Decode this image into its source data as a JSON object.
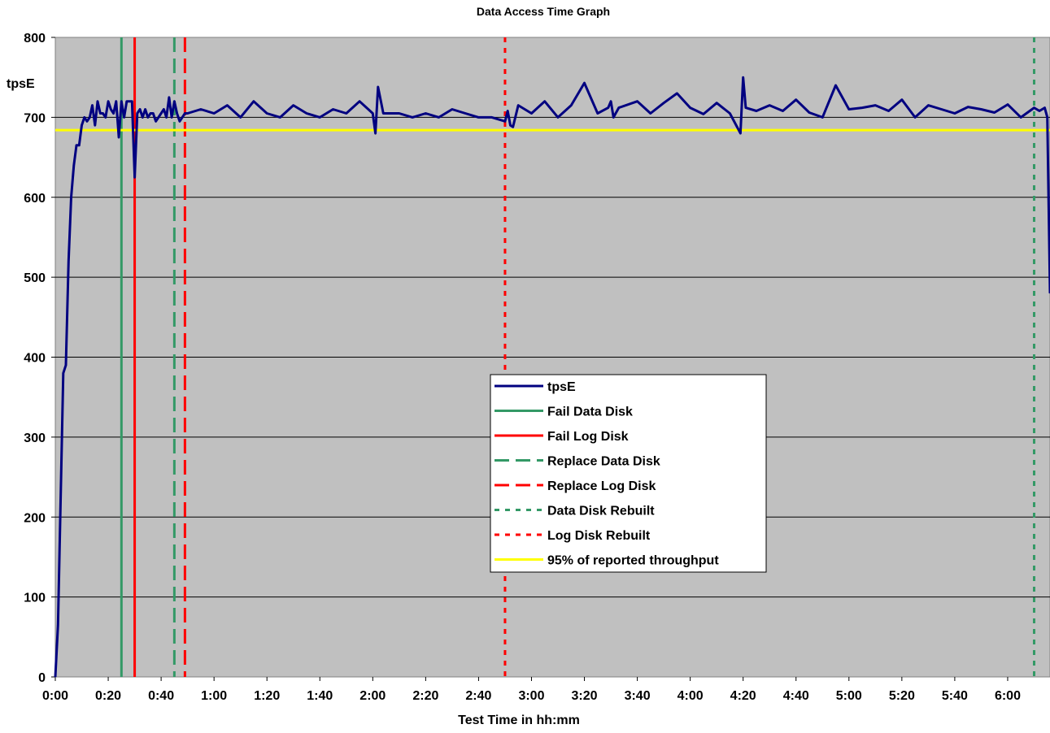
{
  "chart_data": {
    "type": "line",
    "title": "Data Access Time Graph",
    "xlabel": "Test Time in hh:mm",
    "ylabel": "tpsE",
    "ylim": [
      0,
      800
    ],
    "yticks": [
      0,
      100,
      200,
      300,
      400,
      500,
      600,
      700,
      800
    ],
    "xlim_minutes": [
      0,
      376
    ],
    "xticks": [
      "0:00",
      "0:20",
      "0:40",
      "1:00",
      "1:20",
      "1:40",
      "2:00",
      "2:20",
      "2:40",
      "3:00",
      "3:20",
      "3:40",
      "4:00",
      "4:20",
      "4:40",
      "5:00",
      "5:20",
      "5:40",
      "6:00"
    ],
    "grid": "horizontal",
    "legend_position": "center",
    "series": [
      {
        "name": "tpsE",
        "color": "#000080",
        "style": "solid",
        "x_minutes": [
          0,
          1,
          2,
          3,
          4,
          5,
          6,
          7,
          8,
          9,
          10,
          11,
          12,
          13,
          14,
          15,
          16,
          17,
          18,
          19,
          20,
          21,
          22,
          23,
          24,
          25,
          26,
          27,
          28,
          29,
          30,
          31,
          32,
          33,
          34,
          35,
          36,
          37,
          38,
          39,
          40,
          41,
          42,
          43,
          44,
          45,
          46,
          47,
          48,
          49,
          50,
          55,
          60,
          65,
          70,
          75,
          80,
          85,
          90,
          95,
          100,
          105,
          110,
          115,
          120,
          121,
          122,
          124,
          130,
          135,
          140,
          145,
          150,
          155,
          160,
          165,
          170,
          171,
          172,
          173,
          175,
          180,
          185,
          190,
          195,
          200,
          205,
          209,
          210,
          211,
          213,
          220,
          225,
          230,
          235,
          240,
          245,
          250,
          255,
          259,
          260,
          261,
          265,
          270,
          275,
          280,
          285,
          290,
          295,
          300,
          305,
          310,
          315,
          320,
          325,
          330,
          335,
          340,
          345,
          350,
          355,
          360,
          365,
          370,
          372,
          374,
          375,
          376
        ],
        "values": [
          0,
          65,
          220,
          380,
          390,
          520,
          600,
          640,
          665,
          665,
          690,
          700,
          695,
          700,
          715,
          690,
          720,
          705,
          705,
          700,
          720,
          710,
          705,
          720,
          675,
          720,
          700,
          720,
          720,
          720,
          625,
          705,
          710,
          700,
          710,
          700,
          705,
          705,
          695,
          700,
          705,
          710,
          700,
          725,
          700,
          720,
          705,
          695,
          700,
          705,
          705,
          710,
          705,
          715,
          700,
          720,
          705,
          700,
          715,
          705,
          700,
          710,
          705,
          720,
          705,
          680,
          738,
          705,
          705,
          700,
          705,
          700,
          710,
          705,
          700,
          700,
          695,
          708,
          690,
          688,
          715,
          705,
          720,
          700,
          715,
          743,
          705,
          712,
          720,
          700,
          712,
          720,
          705,
          718,
          730,
          712,
          704,
          718,
          705,
          680,
          750,
          712,
          708,
          715,
          708,
          722,
          706,
          700,
          740,
          710,
          712,
          715,
          708,
          722,
          700,
          715,
          710,
          705,
          713,
          710,
          706,
          716,
          700,
          712,
          708,
          712,
          700,
          480
        ],
        "dash": []
      },
      {
        "name": "Fail Data Disk",
        "color": "#339966",
        "style": "solid",
        "x_minutes": [
          25
        ],
        "dash": []
      },
      {
        "name": "Fail Log Disk",
        "color": "#ff0000",
        "style": "solid",
        "x_minutes": [
          30
        ],
        "dash": []
      },
      {
        "name": "Replace Data Disk",
        "color": "#339966",
        "style": "dashed",
        "x_minutes": [
          45
        ],
        "dash": [
          18,
          8
        ]
      },
      {
        "name": "Replace Log Disk",
        "color": "#ff0000",
        "style": "dashed",
        "x_minutes": [
          49
        ],
        "dash": [
          18,
          8
        ]
      },
      {
        "name": "Data Disk Rebuilt",
        "color": "#339966",
        "style": "dotted",
        "x_minutes": [
          370
        ],
        "dash": [
          6,
          7
        ]
      },
      {
        "name": "Log Disk Rebuilt",
        "color": "#ff0000",
        "style": "dotted",
        "x_minutes": [
          170
        ],
        "dash": [
          6,
          7
        ]
      },
      {
        "name": "95% of reported throughput",
        "color": "#ffff00",
        "style": "solid",
        "y_value": 684,
        "dash": []
      }
    ]
  },
  "colors": {
    "plot_background": "#c0c0c0",
    "gridline": "#000000",
    "legend_background": "#ffffff"
  }
}
